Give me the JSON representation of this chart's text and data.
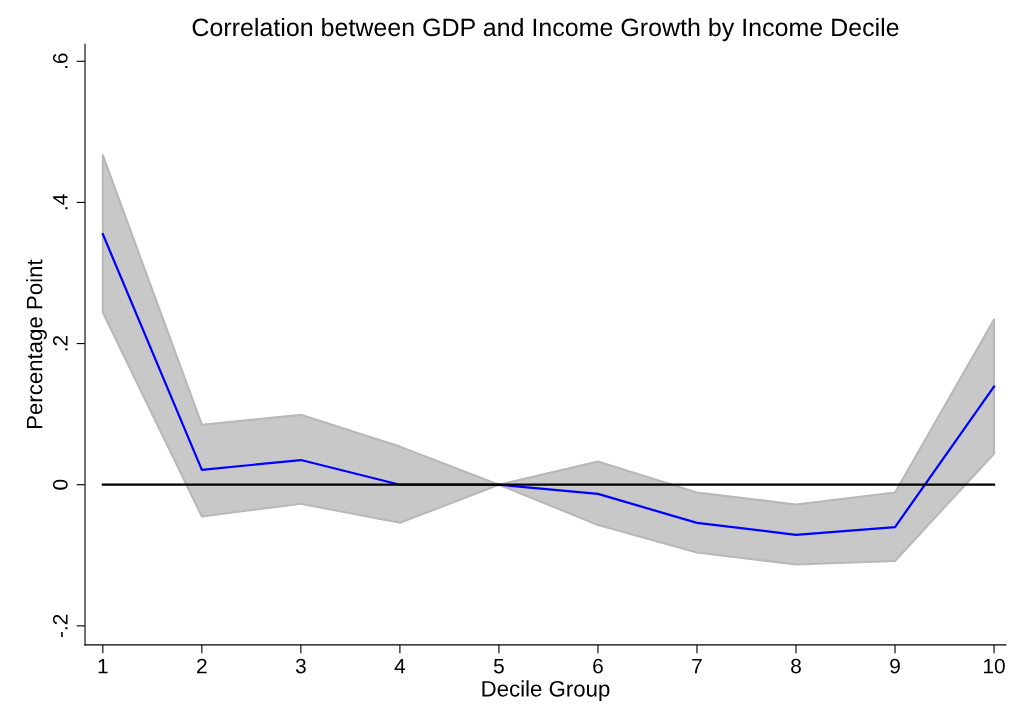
{
  "chart_data": {
    "type": "line",
    "title": "Correlation between GDP and Income Growth by Income Decile",
    "xlabel": "Decile Group",
    "ylabel": "Percentage Point",
    "x": [
      1,
      2,
      3,
      4,
      5,
      6,
      7,
      8,
      9,
      10
    ],
    "series": [
      {
        "color": "#0000ff",
        "values": [
          0.355,
          0.021,
          0.035,
          0.0,
          0.0,
          -0.013,
          -0.054,
          -0.071,
          -0.06,
          0.139
        ],
        "lower": [
          0.244,
          -0.045,
          -0.027,
          -0.054,
          0.0,
          -0.057,
          -0.096,
          -0.113,
          -0.108,
          0.044
        ],
        "upper": [
          0.467,
          0.085,
          0.099,
          0.054,
          0.0,
          0.033,
          -0.011,
          -0.028,
          -0.011,
          0.234
        ]
      },
      {
        "color": "#000000",
        "x": [
          1,
          10
        ],
        "values": [
          0,
          0
        ]
      }
    ],
    "xlim": [
      0.82,
      10.12
    ],
    "ylim": [
      -0.227,
      0.624
    ],
    "xticks": [
      1,
      2,
      3,
      4,
      5,
      6,
      7,
      8,
      9,
      10
    ],
    "yticks": [
      {
        "value": -0.2,
        "label": "-.2"
      },
      {
        "value": 0,
        "label": "0"
      },
      {
        "value": 0.2,
        "label": ".2"
      },
      {
        "value": 0.4,
        "label": ".4"
      },
      {
        "value": 0.6,
        "label": ".6"
      }
    ],
    "grid": false,
    "legend": false
  }
}
